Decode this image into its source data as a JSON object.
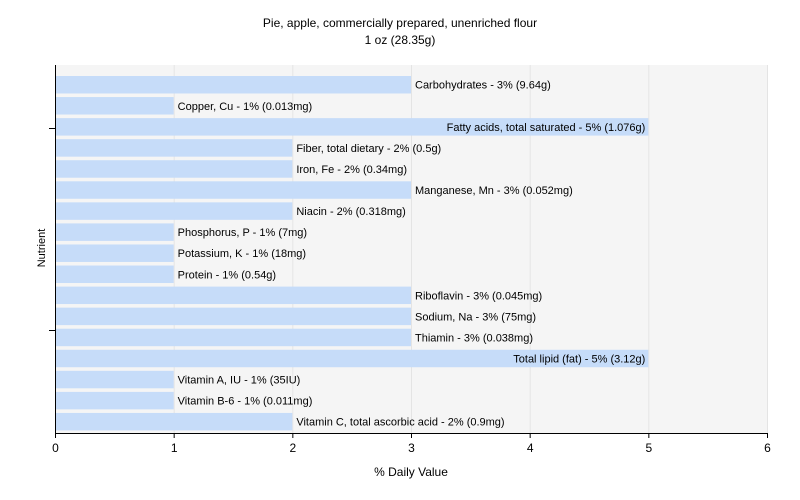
{
  "chart_data": {
    "type": "bar",
    "orientation": "horizontal",
    "title": "Pie, apple, commercially prepared, unenriched flour",
    "subtitle": "1 oz (28.35g)",
    "xlabel": "% Daily Value",
    "ylabel": "Nutrient",
    "xlim": [
      0,
      6
    ],
    "xticks": [
      "0",
      "1",
      "2",
      "3",
      "4",
      "5",
      "6"
    ],
    "grid": true,
    "bar_color": "#c6dcf9",
    "plot_background": "#f5f5f5",
    "categories": [
      "Carbohydrates",
      "Copper, Cu",
      "Fatty acids, total saturated",
      "Fiber, total dietary",
      "Iron, Fe",
      "Manganese, Mn",
      "Niacin",
      "Phosphorus, P",
      "Potassium, K",
      "Protein",
      "Riboflavin",
      "Sodium, Na",
      "Thiamin",
      "Total lipid (fat)",
      "Vitamin A, IU",
      "Vitamin B-6",
      "Vitamin C, total ascorbic acid"
    ],
    "values": [
      3,
      1,
      5,
      2,
      2,
      3,
      2,
      1,
      1,
      1,
      3,
      3,
      3,
      5,
      1,
      1,
      2
    ],
    "labels": [
      "Carbohydrates - 3% (9.64g)",
      "Copper, Cu - 1% (0.013mg)",
      "Fatty acids, total saturated - 5% (1.076g)",
      "Fiber, total dietary - 2% (0.5g)",
      "Iron, Fe - 2% (0.34mg)",
      "Manganese, Mn - 3% (0.052mg)",
      "Niacin - 2% (0.318mg)",
      "Phosphorus, P - 1% (7mg)",
      "Potassium, K - 1% (18mg)",
      "Protein - 1% (0.54g)",
      "Riboflavin - 3% (0.045mg)",
      "Sodium, Na - 3% (75mg)",
      "Thiamin - 3% (0.038mg)",
      "Total lipid (fat) - 5% (3.12g)",
      "Vitamin A, IU - 1% (35IU)",
      "Vitamin B-6 - 1% (0.011mg)",
      "Vitamin C, total ascorbic acid - 2% (0.9mg)"
    ]
  }
}
